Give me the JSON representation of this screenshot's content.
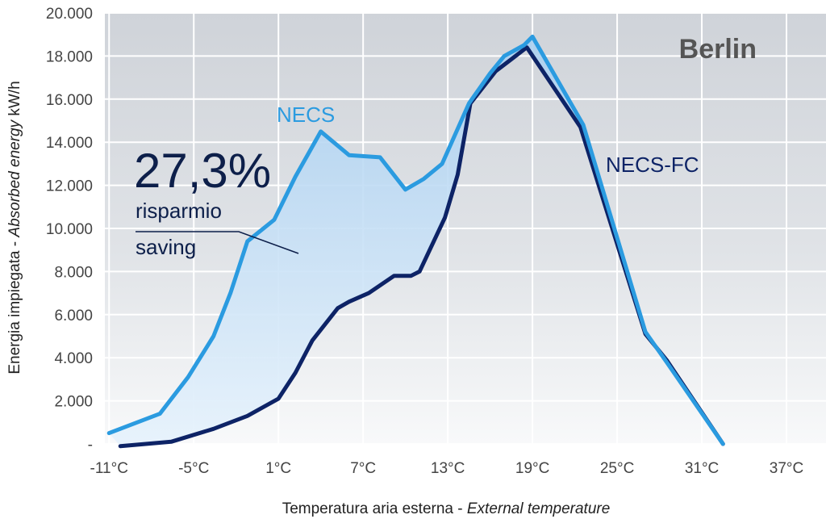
{
  "chart_data": {
    "type": "line",
    "title": "Berlin",
    "xlabel_regular": "Temperatura aria esterna - ",
    "xlabel_italic": "External temperature",
    "ylabel_regular": "Energia impiegata - ",
    "ylabel_italic": "Absorbed energy",
    "ylabel_unit": " kW/h",
    "x_ticks": [
      -11,
      -5,
      1,
      7,
      13,
      19,
      25,
      31,
      37
    ],
    "x_tick_labels": [
      "-11°C",
      "-5°C",
      "1°C",
      "7°C",
      "13°C",
      "19°C",
      "25°C",
      "31°C",
      "37°C"
    ],
    "y_ticks": [
      0,
      2000,
      4000,
      6000,
      8000,
      10000,
      12000,
      14000,
      16000,
      18000,
      20000
    ],
    "y_tick_labels": [
      "-",
      "2.000",
      "4.000",
      "6.000",
      "8.000",
      "10.000",
      "12.000",
      "14.000",
      "16.000",
      "18.000",
      "20.000"
    ],
    "xlim": [
      -11.3,
      39.8
    ],
    "ylim": [
      0,
      20000
    ],
    "grid": true,
    "series": [
      {
        "name": "NECS",
        "color": "#2b9be0",
        "points": [
          [
            -11,
            500
          ],
          [
            -7.4,
            1400
          ],
          [
            -5.4,
            3100
          ],
          [
            -3.6,
            5000
          ],
          [
            -2.4,
            7000
          ],
          [
            -1.2,
            9400
          ],
          [
            0.7,
            10400
          ],
          [
            2.2,
            12400
          ],
          [
            4.0,
            14500
          ],
          [
            6.0,
            13400
          ],
          [
            8.2,
            13300
          ],
          [
            10.0,
            11800
          ],
          [
            11.3,
            12300
          ],
          [
            12.6,
            13000
          ],
          [
            14.5,
            15800
          ],
          [
            16.0,
            17200
          ],
          [
            17.0,
            18000
          ],
          [
            18.4,
            18500
          ],
          [
            19.0,
            18900
          ],
          [
            22.6,
            14800
          ],
          [
            27.0,
            5200
          ],
          [
            28.5,
            3800
          ],
          [
            32.5,
            0
          ]
        ]
      },
      {
        "name": "NECS-FC",
        "color": "#0d2366",
        "points": [
          [
            -10.2,
            -100
          ],
          [
            -6.6,
            100
          ],
          [
            -3.6,
            700
          ],
          [
            -1.2,
            1300
          ],
          [
            1.0,
            2100
          ],
          [
            2.2,
            3300
          ],
          [
            3.4,
            4800
          ],
          [
            5.2,
            6300
          ],
          [
            6.0,
            6600
          ],
          [
            7.4,
            7000
          ],
          [
            9.2,
            7800
          ],
          [
            10.4,
            7800
          ],
          [
            11.0,
            8000
          ],
          [
            12.8,
            10500
          ],
          [
            13.7,
            12500
          ],
          [
            14.6,
            15800
          ],
          [
            16.4,
            17300
          ],
          [
            17.6,
            17900
          ],
          [
            18.6,
            18400
          ],
          [
            22.4,
            14700
          ],
          [
            27.0,
            5100
          ],
          [
            28.5,
            3900
          ],
          [
            32.5,
            0
          ]
        ]
      }
    ],
    "saving": {
      "percent": "27,3%",
      "line1": "risparmio",
      "line2": "saving"
    }
  }
}
